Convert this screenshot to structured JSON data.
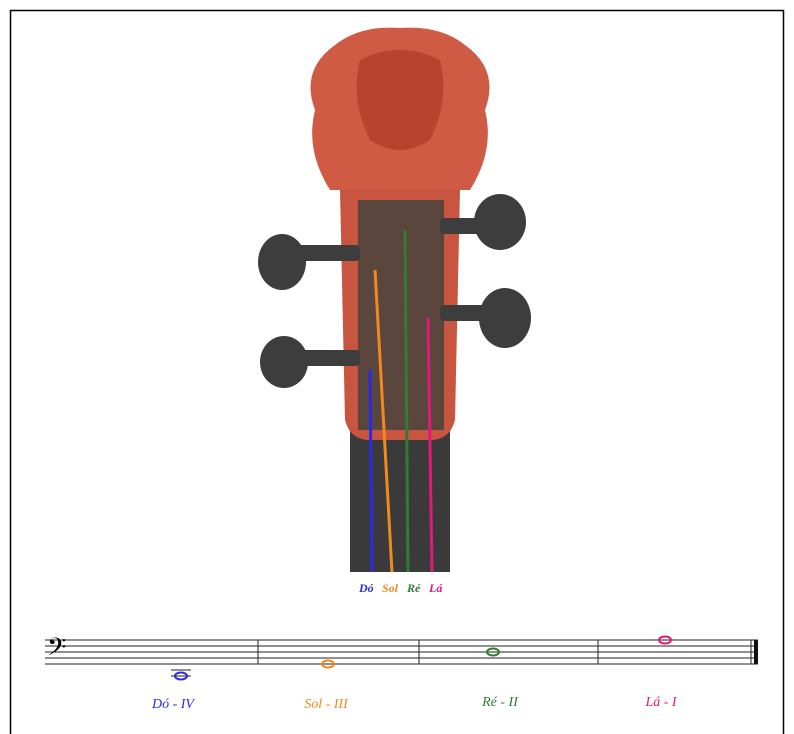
{
  "caption": [
    "Dó",
    "Sol",
    "Ré",
    "Lá"
  ],
  "labels": [
    "Dó - IV",
    "Sol - III",
    "Ré - II",
    "Lá - I"
  ]
}
